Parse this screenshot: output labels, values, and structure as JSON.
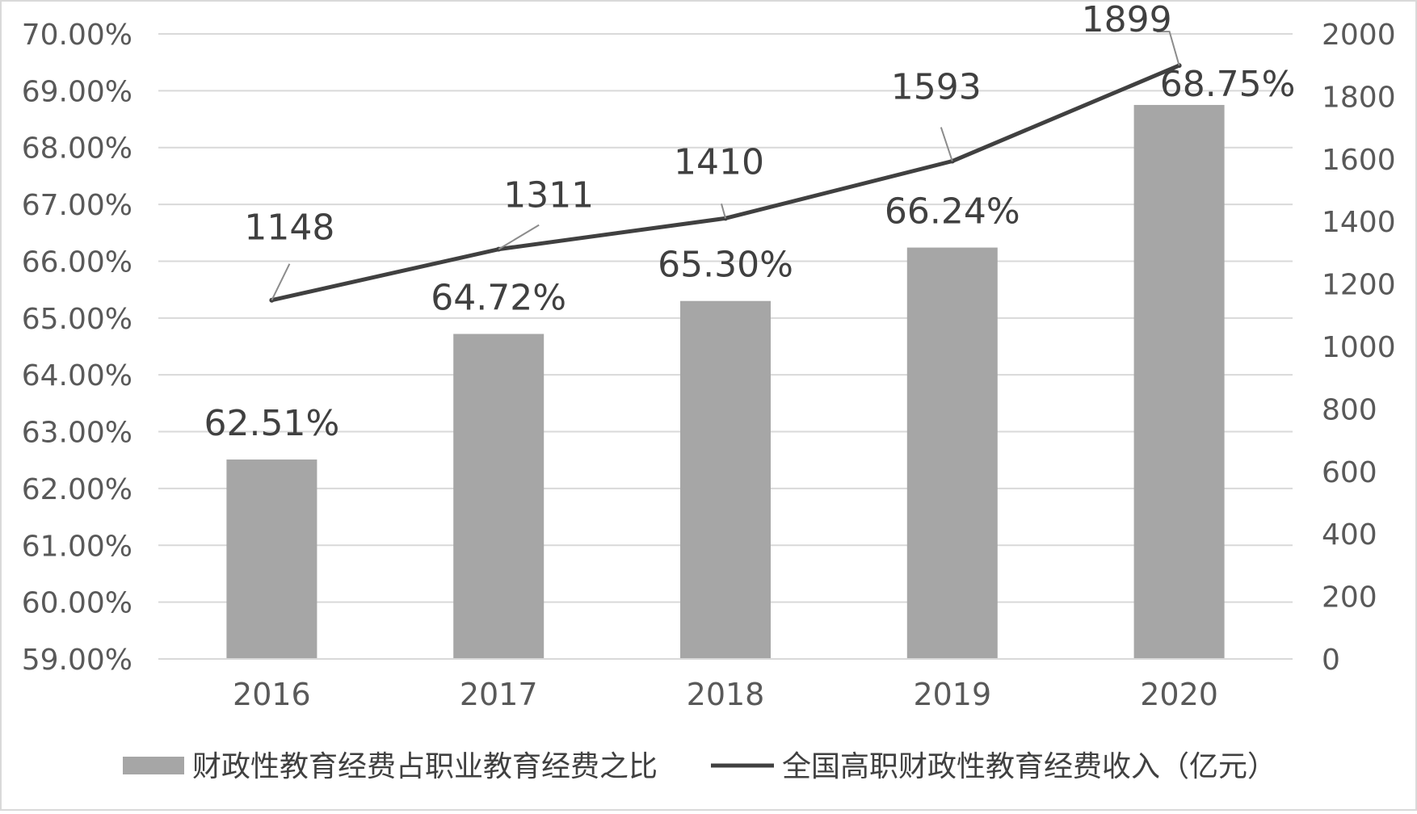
{
  "chart_data": {
    "type": "bar",
    "categories": [
      "2016",
      "2017",
      "2018",
      "2019",
      "2020"
    ],
    "series": [
      {
        "name": "财政性教育经费占职业教育经费之比",
        "kind": "bar",
        "axis": "left",
        "color": "#a6a6a6",
        "values": [
          62.51,
          64.72,
          65.3,
          66.24,
          68.75
        ],
        "labels": [
          "62.51%",
          "64.72%",
          "65.30%",
          "66.24%",
          "68.75%"
        ]
      },
      {
        "name": "全国高职财政性教育经费收入（亿元）",
        "kind": "line",
        "axis": "right",
        "color": "#404040",
        "values": [
          1148,
          1311,
          1410,
          1593,
          1899
        ],
        "labels": [
          "1148",
          "1311",
          "1410",
          "1593",
          "1899"
        ]
      }
    ],
    "y_left": {
      "range": [
        59,
        70
      ],
      "step": 1,
      "ticks": [
        "59.00%",
        "60.00%",
        "61.00%",
        "62.00%",
        "63.00%",
        "64.00%",
        "65.00%",
        "66.00%",
        "67.00%",
        "68.00%",
        "69.00%",
        "70.00%"
      ]
    },
    "y_right": {
      "range": [
        0,
        2000
      ],
      "step": 200,
      "ticks": [
        "0",
        "200",
        "400",
        "600",
        "800",
        "1000",
        "1200",
        "1400",
        "1600",
        "1800",
        "2000"
      ]
    },
    "grid": true,
    "legend": "bottom"
  }
}
